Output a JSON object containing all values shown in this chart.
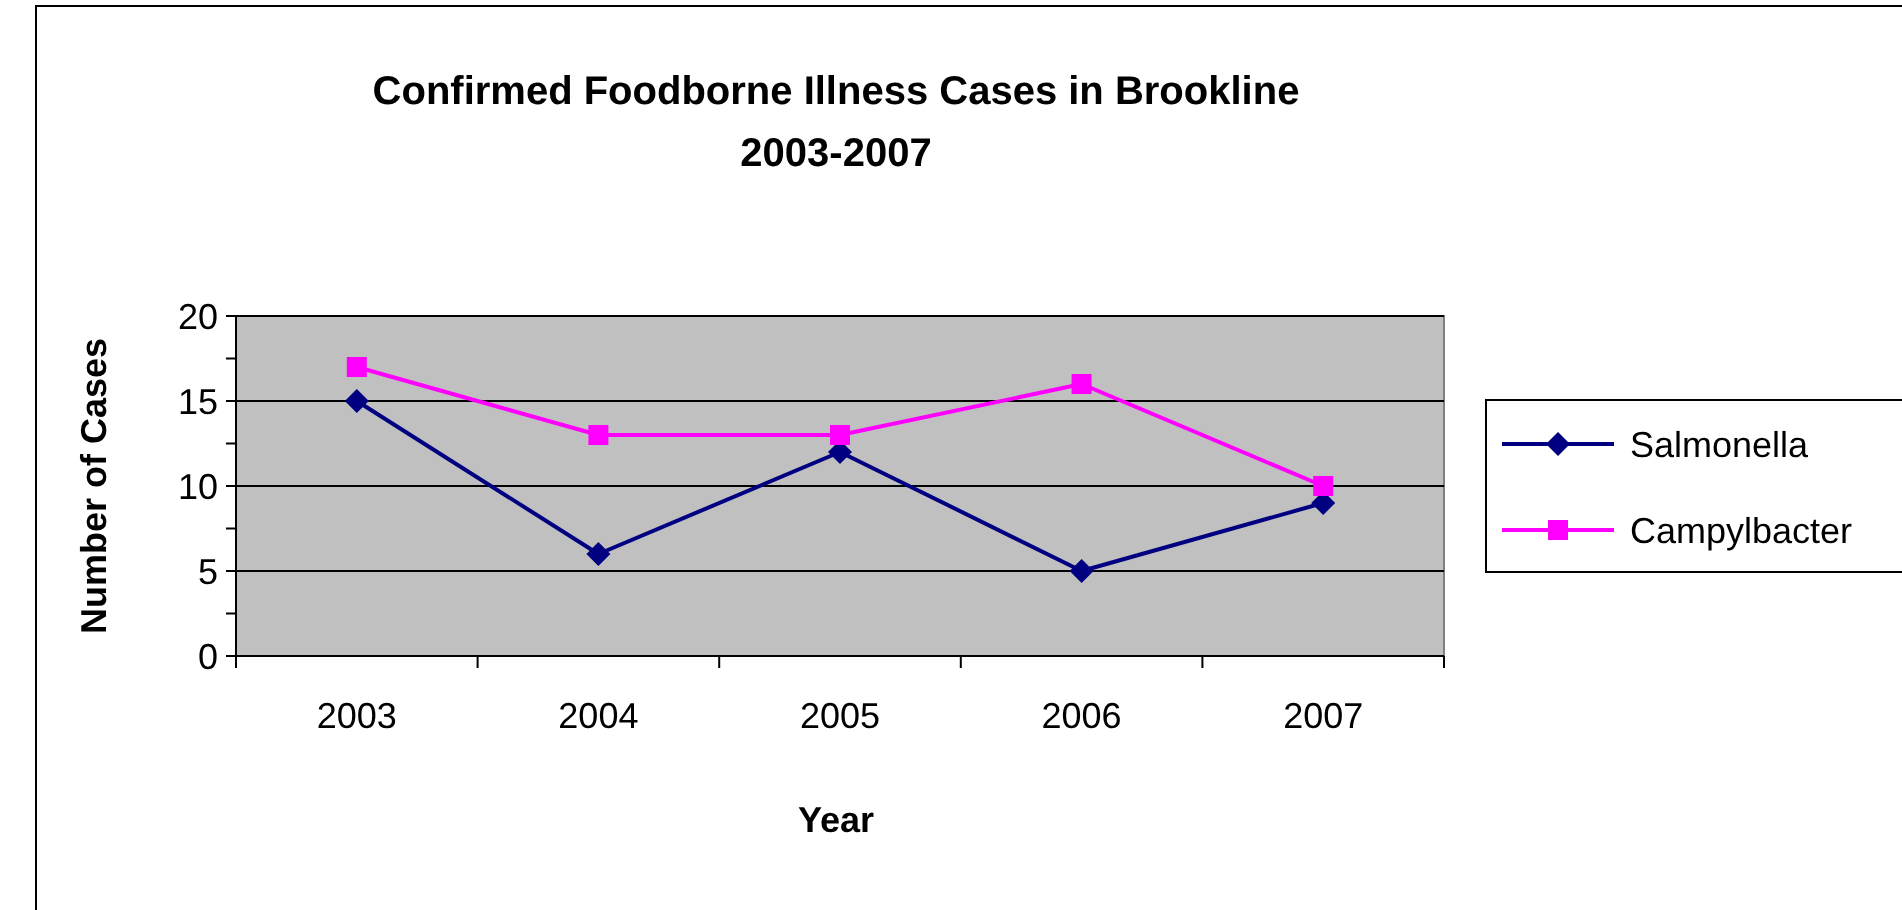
{
  "chart_data": {
    "type": "line",
    "title": "Confirmed Foodborne Illness Cases in Brookline\n2003-2007",
    "xlabel": "Year",
    "ylabel": "Number of Cases",
    "categories": [
      "2003",
      "2004",
      "2005",
      "2006",
      "2007"
    ],
    "series": [
      {
        "name": "Salmonella",
        "color": "#000080",
        "marker": "diamond",
        "values": [
          15,
          6,
          12,
          5,
          9
        ]
      },
      {
        "name": "Campylbacter",
        "color": "#ff00ff",
        "marker": "square",
        "values": [
          17,
          13,
          13,
          16,
          10
        ]
      }
    ],
    "ylim": [
      0,
      20
    ],
    "yticks": [
      0,
      {
        "value": 2.5,
        "label": null
      },
      5,
      {
        "value": 7.5,
        "label": null
      },
      10,
      {
        "value": 12.5,
        "label": null
      },
      15,
      {
        "value": 17.5,
        "label": null
      },
      20
    ],
    "grid": "y",
    "legend": "right",
    "line_style": "solid"
  }
}
